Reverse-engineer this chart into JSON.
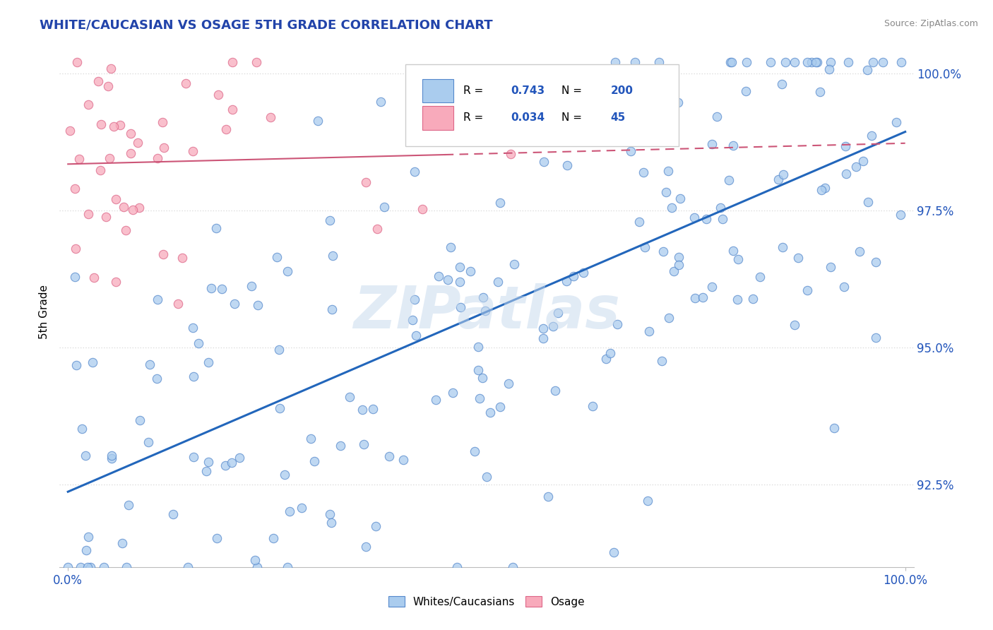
{
  "title": "WHITE/CAUCASIAN VS OSAGE 5TH GRADE CORRELATION CHART",
  "source": "Source: ZipAtlas.com",
  "xlabel_label": "Whites/Caucasians",
  "xlabel_label2": "Osage",
  "ylabel": "5th Grade",
  "blue_R": 0.743,
  "blue_N": 200,
  "pink_R": 0.034,
  "pink_N": 45,
  "blue_fill_color": "#aaccee",
  "blue_edge_color": "#5588cc",
  "blue_line_color": "#2266bb",
  "pink_fill_color": "#f8aabb",
  "pink_edge_color": "#dd6688",
  "pink_line_color": "#cc5577",
  "watermark_color": "#c8d8e8",
  "tick_label_color": "#2255bb",
  "title_color": "#2244aa",
  "source_color": "#888888",
  "background_color": "#ffffff",
  "grid_color": "#dddddd",
  "y_min": 0.91,
  "y_max": 1.003,
  "x_min": 0.0,
  "x_max": 1.0,
  "y_ticks": [
    0.925,
    0.95,
    0.975,
    1.0
  ],
  "y_tick_labels": [
    "92.5%",
    "95.0%",
    "97.5%",
    "100.0%"
  ],
  "x_tick_labels": [
    "0.0%",
    "100.0%"
  ]
}
